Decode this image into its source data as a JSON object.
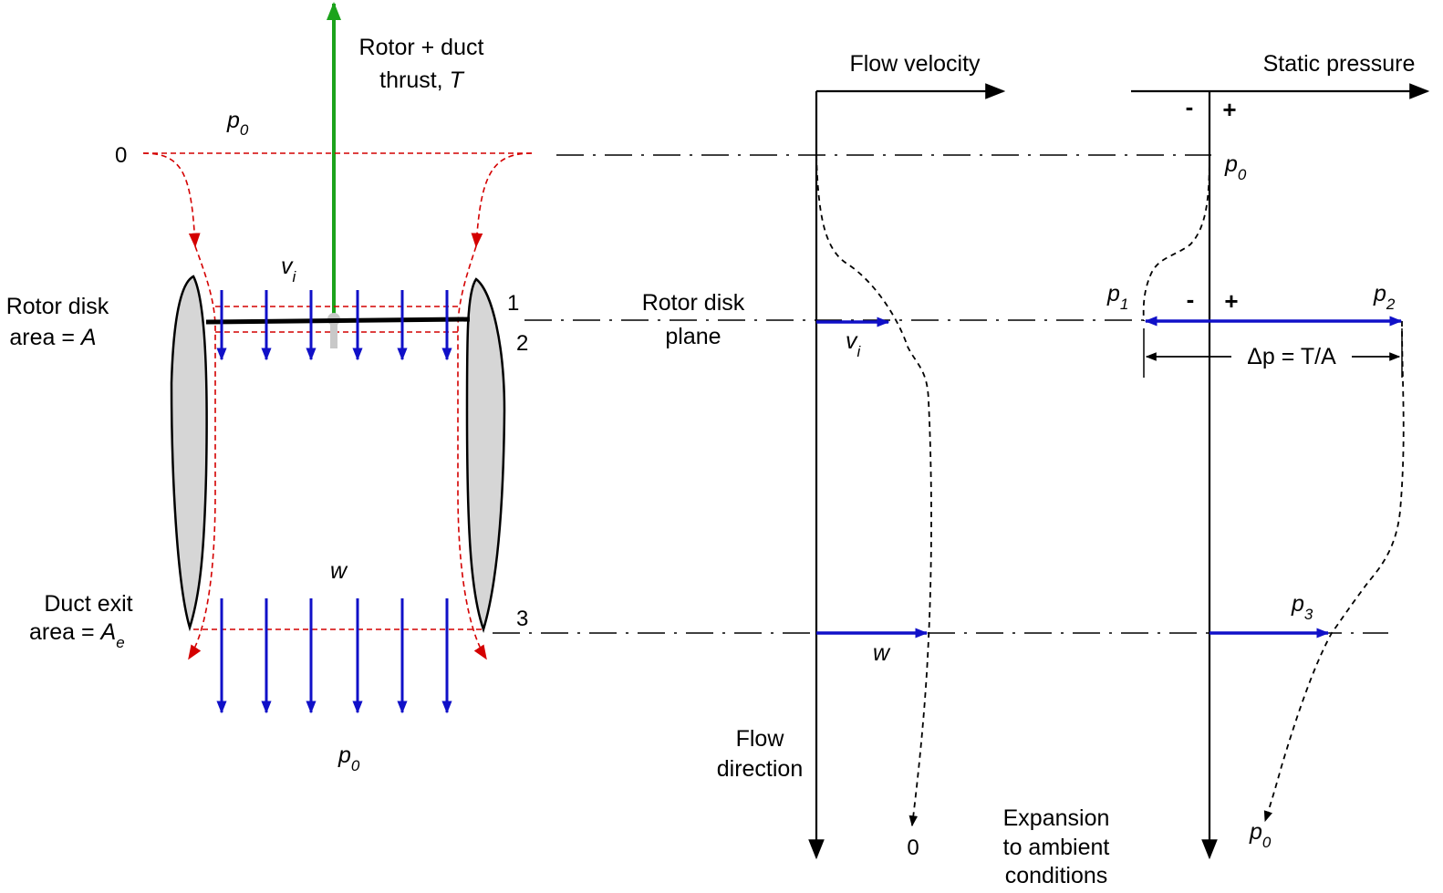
{
  "duct": {
    "thrust_label_line1": "Rotor + duct",
    "thrust_label_line2": "thrust, ",
    "thrust_symbol": "T",
    "p0_top": "p",
    "p0_top_sub": "0",
    "station_0": "0",
    "station_1": "1",
    "station_2": "2",
    "station_3": "3",
    "vi_label": "v",
    "vi_sub": "i",
    "w_label": "w",
    "rotor_area_line1": "Rotor disk",
    "rotor_area_line2": "area = ",
    "rotor_area_symbol": "A",
    "exit_area_line1": "Duct exit",
    "exit_area_line2": "area = ",
    "exit_area_symbol": "A",
    "exit_area_sub": "e",
    "p0_bottom": "p",
    "p0_bottom_sub": "0"
  },
  "velocity_plot": {
    "title": "Flow velocity",
    "rotor_plane_line1": "Rotor disk",
    "rotor_plane_line2": "plane",
    "vi_label": "v",
    "vi_sub": "i",
    "w_label": "w",
    "flow_dir_line1": "Flow",
    "flow_dir_line2": "direction",
    "zero_label": "0"
  },
  "pressure_plot": {
    "title": "Static pressure",
    "minus_top": "-",
    "plus_top": "+",
    "minus_mid": "-",
    "plus_mid": "+",
    "p0_label": "p",
    "p0_sub": "0",
    "p1_label": "p",
    "p1_sub": "1",
    "p2_label": "p",
    "p2_sub": "2",
    "p3_label": "p",
    "p3_sub": "3",
    "p0_end_label": "p",
    "p0_end_sub": "0",
    "delta_p_label": "Δp = T/A",
    "expansion_line1": "Expansion",
    "expansion_line2": "to ambient",
    "expansion_line3": "conditions"
  },
  "colors": {
    "thrust_arrow": "#1ca31c",
    "flow_arrows": "#1010c8",
    "streamlines": "#d40000",
    "duct_fill": "#d6d6d6"
  }
}
